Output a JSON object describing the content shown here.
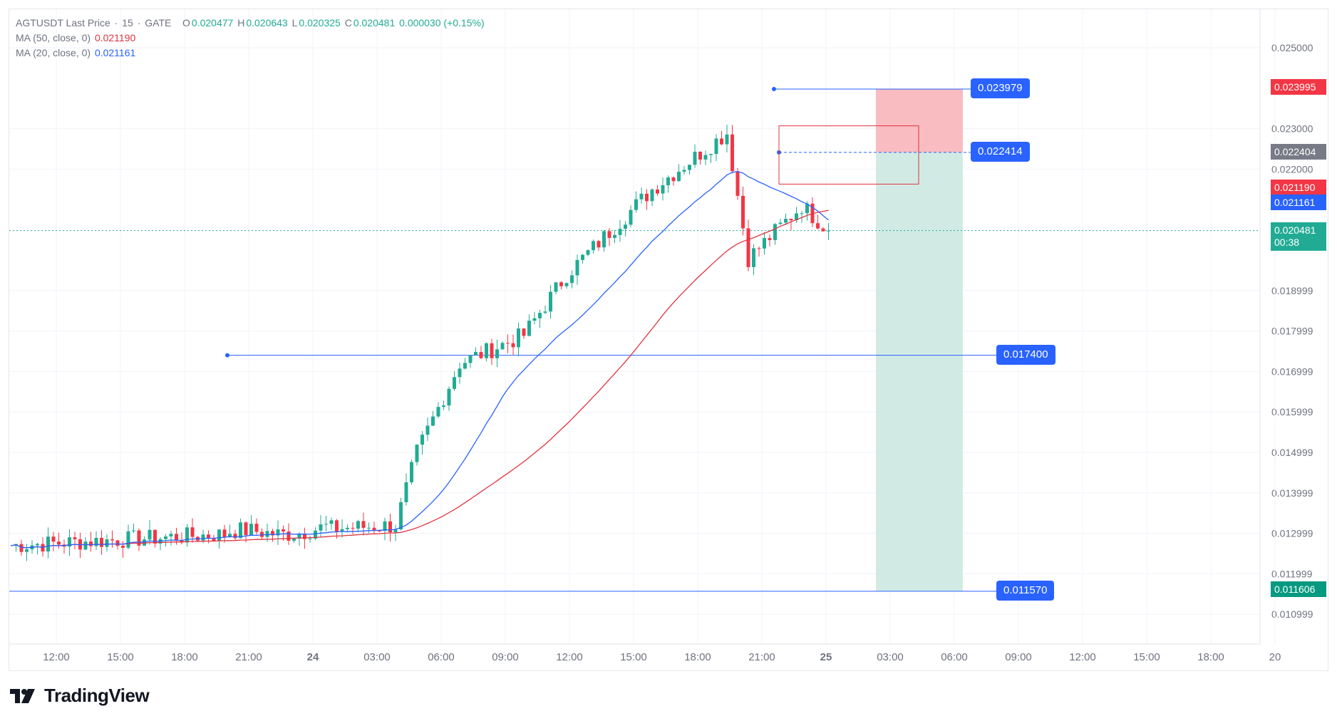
{
  "header": {
    "symbol": "AGTUSDT Last Price",
    "interval": "15",
    "exchange": "GATE",
    "open_label": "O",
    "open": "0.020477",
    "high_label": "H",
    "high": "0.020643",
    "low_label": "L",
    "low": "0.020325",
    "close_label": "C",
    "close": "0.020481",
    "change": "0.000030 (+0.15%)"
  },
  "indicators": [
    {
      "label": "MA (50, close, 0)",
      "value": "0.021190",
      "color": "#e0333f"
    },
    {
      "label": "MA (20, close, 0)",
      "value": "0.021161",
      "color": "#2962ff"
    }
  ],
  "colors": {
    "up": "#22ab94",
    "down": "#f23645",
    "ma50": "#e0333f",
    "ma20": "#2962ff",
    "drawing": "#2962ff",
    "stop_zone": "#f9b8bd",
    "target_zone": "#cfeae3"
  },
  "price_axis": {
    "ticks": [
      "0.025000",
      "0.023000",
      "0.022000",
      "0.018999",
      "0.017999",
      "0.016999",
      "0.015999",
      "0.014999",
      "0.013999",
      "0.012999",
      "0.011999",
      "0.010999"
    ],
    "tags": {
      "stop": "0.023995",
      "entry": "0.022404",
      "ma50": "0.021190",
      "ma20": "0.021161",
      "last": "0.020481",
      "countdown": "00:38",
      "target": "0.011606"
    }
  },
  "time_axis": {
    "ticks": [
      "12:00",
      "15:00",
      "18:00",
      "21:00",
      "24",
      "03:00",
      "06:00",
      "09:00",
      "12:00",
      "15:00",
      "18:00",
      "21:00",
      "25",
      "03:00",
      "06:00",
      "09:00",
      "12:00",
      "15:00",
      "18:00",
      "20"
    ]
  },
  "drawings": {
    "top_line_label": "0.023979",
    "entry_label": "0.022414",
    "support_label": "0.017400",
    "target_label": "0.011570"
  },
  "brand": {
    "name": "TradingView",
    "logo": "tradingview-logo"
  },
  "chart_data": {
    "type": "candlestick",
    "price_range": [
      0.0106,
      0.0257
    ],
    "anchors": [
      {
        "t": "start",
        "close": 0.0127
      },
      {
        "t": "24 06:00",
        "close": 0.0132
      },
      {
        "t": "24 07:00",
        "close": 0.015
      },
      {
        "t": "24 09:00",
        "close": 0.0172
      },
      {
        "t": "24 12:00",
        "close": 0.0179
      },
      {
        "t": "24 14:00",
        "close": 0.0194
      },
      {
        "t": "24 18:00",
        "close": 0.0215
      },
      {
        "t": "24 21:30",
        "close": 0.0229
      },
      {
        "t": "24 22:30",
        "close": 0.0198
      },
      {
        "t": "25 01:00",
        "close": 0.0211
      },
      {
        "t": "25 02:15",
        "close": 0.02048
      }
    ],
    "ma20_last": 0.021161,
    "ma50_last": 0.02119
  }
}
